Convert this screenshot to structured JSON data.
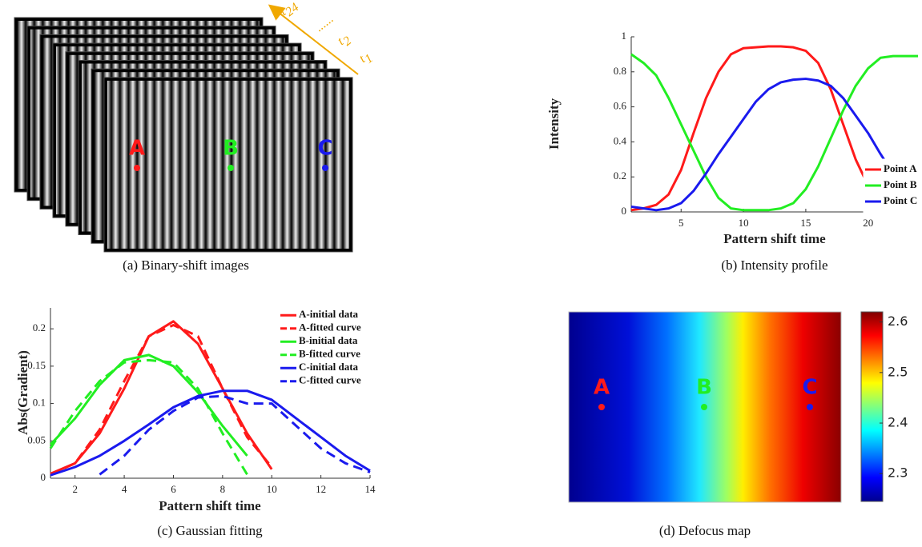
{
  "chart_data": [
    {
      "type": "image",
      "caption": "(a) Binary-shift images",
      "points": [
        {
          "label": "A",
          "color": "#ff1a1a"
        },
        {
          "label": "B",
          "color": "#22ee22"
        },
        {
          "label": "C",
          "color": "#1a1aee"
        }
      ],
      "time_labels": [
        {
          "label": "t",
          "subscript": "24"
        },
        {
          "label": "......"
        },
        {
          "label": "t",
          "subscript": "2"
        },
        {
          "label": "t",
          "subscript": "1"
        }
      ],
      "arrow_color": "#f0a800"
    },
    {
      "type": "line",
      "caption": "(b) Intensity profile",
      "xlabel": "Pattern shift time",
      "ylabel": "Intensity",
      "x": [
        1,
        2,
        3,
        4,
        5,
        6,
        7,
        8,
        9,
        10,
        11,
        12,
        13,
        14,
        15,
        16,
        17,
        18,
        19,
        20,
        21,
        22,
        23,
        24
      ],
      "xlim": [
        1,
        24
      ],
      "xticks": [
        5,
        10,
        15,
        20
      ],
      "ylim": [
        0,
        1
      ],
      "yticks": [
        0,
        0.2,
        0.4,
        0.6,
        0.8,
        1
      ],
      "legend": "lower right",
      "series": [
        {
          "name": "Point A",
          "color": "#ff1a1a",
          "values": [
            0.01,
            0.02,
            0.04,
            0.1,
            0.24,
            0.45,
            0.65,
            0.8,
            0.9,
            0.935,
            0.94,
            0.945,
            0.945,
            0.94,
            0.92,
            0.85,
            0.7,
            0.5,
            0.3,
            0.15,
            0.1,
            0.05,
            0.02,
            0.01
          ]
        },
        {
          "name": "Point B",
          "color": "#22ee22",
          "values": [
            0.9,
            0.85,
            0.78,
            0.65,
            0.5,
            0.35,
            0.2,
            0.08,
            0.02,
            0.01,
            0.01,
            0.01,
            0.02,
            0.05,
            0.13,
            0.26,
            0.42,
            0.58,
            0.72,
            0.82,
            0.88,
            0.89,
            0.89,
            0.89
          ]
        },
        {
          "name": "Point C",
          "color": "#1a1aee",
          "values": [
            0.03,
            0.02,
            0.01,
            0.02,
            0.05,
            0.12,
            0.22,
            0.33,
            0.43,
            0.53,
            0.63,
            0.7,
            0.74,
            0.755,
            0.76,
            0.75,
            0.72,
            0.65,
            0.55,
            0.45,
            0.33,
            0.22,
            0.12,
            0.06
          ]
        }
      ]
    },
    {
      "type": "line",
      "caption": "(c) Gaussian fitting",
      "xlabel": "Pattern shift time",
      "ylabel": "Abs(Gradient)",
      "x": [
        1,
        2,
        3,
        4,
        5,
        6,
        7,
        8,
        9,
        10,
        11,
        12,
        13,
        14
      ],
      "xlim": [
        1,
        14
      ],
      "xticks": [
        2,
        4,
        6,
        8,
        10,
        12,
        14
      ],
      "ylim": [
        0,
        0.228
      ],
      "yticks": [
        0,
        0.05,
        0.1,
        0.15,
        0.2
      ],
      "legend": "upper right",
      "series": [
        {
          "name": "A-initial data",
          "color": "#ff1a1a",
          "style": "solid",
          "values": [
            0.006,
            0.02,
            0.06,
            0.12,
            0.19,
            0.21,
            0.18,
            0.12,
            0.06,
            0.012,
            null,
            null,
            null,
            null
          ]
        },
        {
          "name": "A-fitted curve",
          "color": "#ff1a1a",
          "style": "dashed",
          "values": [
            0.005,
            0.02,
            0.065,
            0.13,
            0.19,
            0.205,
            0.19,
            0.12,
            0.055,
            0.015,
            null,
            null,
            null,
            null
          ]
        },
        {
          "name": "B-initial data",
          "color": "#22ee22",
          "style": "solid",
          "values": [
            0.045,
            0.08,
            0.125,
            0.158,
            0.165,
            0.15,
            0.115,
            0.07,
            0.03,
            null,
            null,
            null,
            null,
            null
          ]
        },
        {
          "name": "B-fitted curve",
          "color": "#22ee22",
          "style": "dashed",
          "values": [
            0.04,
            0.09,
            0.13,
            0.155,
            0.158,
            0.155,
            0.12,
            0.06,
            0.005,
            null,
            null,
            null,
            null,
            null
          ]
        },
        {
          "name": "C-initial data",
          "color": "#1a1aee",
          "style": "solid",
          "values": [
            0.004,
            0.015,
            0.03,
            0.05,
            0.072,
            0.095,
            0.11,
            0.117,
            0.117,
            0.105,
            0.08,
            0.055,
            0.03,
            0.01
          ]
        },
        {
          "name": "C-fitted curve",
          "color": "#1a1aee",
          "style": "dashed",
          "values": [
            null,
            null,
            0.005,
            0.03,
            0.065,
            0.09,
            0.108,
            0.11,
            0.1,
            0.1,
            0.07,
            0.04,
            0.02,
            0.008
          ]
        }
      ]
    },
    {
      "type": "heatmap",
      "caption": "(d) Defocus map",
      "clim": [
        2.245,
        2.62
      ],
      "cticks": [
        2.3,
        2.4,
        2.5,
        2.6
      ],
      "points": [
        {
          "label": "A",
          "color": "#ff1a1a"
        },
        {
          "label": "B",
          "color": "#22ee22"
        },
        {
          "label": "C",
          "color": "#1a1aee"
        }
      ]
    }
  ]
}
